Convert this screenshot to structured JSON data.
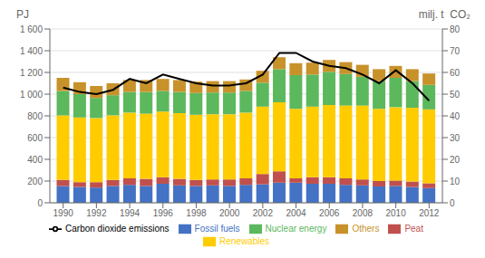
{
  "chart_data": {
    "type": "bar",
    "stacked": true,
    "grid": true,
    "legend": "bottom",
    "ylabel": "PJ",
    "y2label": "milj. t  CO₂",
    "x": [
      1990,
      1991,
      1992,
      1993,
      1994,
      1995,
      1996,
      1997,
      1998,
      1999,
      2000,
      2001,
      2002,
      2003,
      2004,
      2005,
      2006,
      2007,
      2008,
      2009,
      2010,
      2011,
      2012
    ],
    "xlim": [
      1989.2,
      2012.8
    ],
    "xticks": [
      1990,
      1992,
      1994,
      1996,
      1998,
      2000,
      2002,
      2004,
      2006,
      2008,
      2010,
      2012
    ],
    "ylim": [
      0,
      1600
    ],
    "yticks": [
      0,
      200,
      400,
      600,
      800,
      {
        "value": 1000,
        "label": "1 000"
      },
      {
        "value": 1200,
        "label": "1 200"
      },
      {
        "value": 1400,
        "label": "1 400"
      },
      {
        "value": 1600,
        "label": "1 600"
      }
    ],
    "y2lim": [
      0,
      80
    ],
    "y2ticks": [
      0,
      10,
      20,
      30,
      40,
      50,
      60,
      70,
      80
    ],
    "series": [
      {
        "name": "Fossil fuels",
        "color": "#4472C4",
        "type": "bar",
        "values": [
          155,
          145,
          140,
          155,
          165,
          155,
          175,
          160,
          155,
          160,
          155,
          165,
          170,
          185,
          185,
          175,
          175,
          165,
          160,
          150,
          155,
          145,
          135
        ]
      },
      {
        "name": "Peat",
        "color": "#C0504D",
        "type": "bar",
        "values": [
          55,
          45,
          50,
          55,
          60,
          65,
          60,
          60,
          55,
          55,
          60,
          60,
          95,
          105,
          40,
          60,
          60,
          60,
          55,
          50,
          50,
          50,
          45
        ]
      },
      {
        "name": "Renewables",
        "color": "#FFCC00",
        "type": "bar",
        "values": [
          595,
          595,
          590,
          595,
          605,
          600,
          605,
          605,
          600,
          600,
          600,
          605,
          620,
          635,
          640,
          650,
          665,
          670,
          680,
          665,
          675,
          680,
          680
        ]
      },
      {
        "name": "Nuclear energy",
        "color": "#5CB85C",
        "type": "bar",
        "values": [
          225,
          215,
          185,
          185,
          190,
          200,
          190,
          195,
          200,
          200,
          200,
          200,
          220,
          305,
          310,
          295,
          305,
          290,
          265,
          255,
          270,
          245,
          225
        ]
      },
      {
        "name": "Others",
        "color": "#C8922A",
        "type": "bar",
        "values": [
          120,
          110,
          110,
          110,
          110,
          110,
          110,
          110,
          105,
          105,
          105,
          105,
          110,
          110,
          110,
          110,
          110,
          110,
          110,
          110,
          110,
          110,
          105
        ]
      },
      {
        "name": "Carbon dioxide emissions",
        "color": "#000000",
        "type": "line",
        "axis": "y2",
        "values": [
          53,
          51,
          50,
          52,
          57,
          55,
          59,
          57,
          55,
          54,
          54,
          55,
          59,
          69,
          69,
          65,
          63,
          62,
          59,
          55,
          61,
          55,
          47
        ]
      }
    ]
  }
}
